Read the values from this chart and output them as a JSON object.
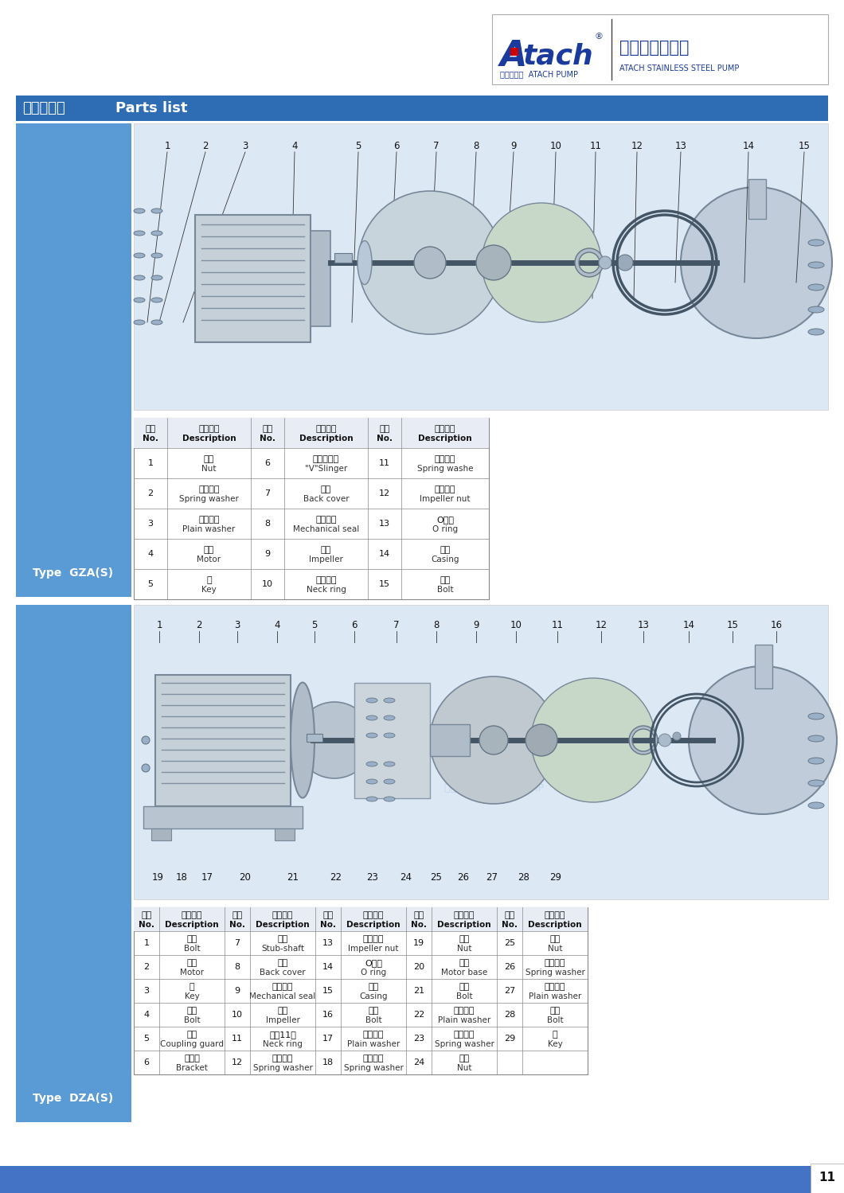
{
  "bg_color": "#ffffff",
  "blue_panel_color": "#5b9bd5",
  "footer_color": "#4472c4",
  "header_bar_color": "#2e6db4",
  "logo_atach_color": "#1a3a9e",
  "logo_red_color": "#cc0000",
  "logo_chinese": "艾特克不锈钓泵",
  "logo_eng": "ATACH STAINLESS STEEL PUMP",
  "logo_sub": "艾特克泵业  ATACH PUMP",
  "section_title_cn": "泵體部件表",
  "section_title_en": "Parts list",
  "type1": "Type  GZA(S)",
  "type2": "Type  DZA(S)",
  "page_num": "11",
  "table_hdr_bg": "#e8edf5",
  "table_border_color": "#888888",
  "gza_hdr_row": [
    "序號\nNo.",
    "部件名称\nDescription",
    "序號\nNo.",
    "部件名称\nDescription",
    "序號\nNo.",
    "部件名称\nDescription"
  ],
  "gza_data_rows": [
    [
      "1",
      "螺母\nNut",
      "6",
      "層型密封圈\n\"V\"Slinger",
      "11",
      "彌簧墊圈\nSpring washe"
    ],
    [
      "2",
      "彌簧墊圈\nSpring washer",
      "7",
      "後蓋\nBack cover",
      "12",
      "葉輪蓋母\nImpeller nut"
    ],
    [
      "3",
      "平面墊圈\nPlain washer",
      "8",
      "機械密封\nMechanical seal",
      "13",
      "O形圈\nO ring"
    ],
    [
      "4",
      "電機\nMotor",
      "9",
      "葉輪\nImpeller",
      "14",
      "泵體\nCasing"
    ],
    [
      "5",
      "鍵\nKey",
      "10",
      "浮動口環\nNeck ring",
      "15",
      "螺栓\nBolt"
    ]
  ],
  "dza_hdr_row": [
    "序號\nNo.",
    "部件名称\nDescription",
    "序號\nNo.",
    "部件名称\nDescription",
    "序號\nNo.",
    "部件名称\nDescription",
    "序號\nNo.",
    "部件名称\nDescription",
    "序號\nNo.",
    "部件名称\nDescription"
  ],
  "dza_data_rows": [
    [
      "1",
      "螺栓\nBolt",
      "7",
      "短軸\nStub-shaft",
      "13",
      "葉輪蓋母\nImpeller nut",
      "19",
      "螺母\nNut",
      "25",
      "螺母\nNut"
    ],
    [
      "2",
      "電機\nMotor",
      "8",
      "後蓋\nBack cover",
      "14",
      "O形圈\nO ring",
      "20",
      "墊脚\nMotor base",
      "26",
      "彌簧墊圈\nSpring washer"
    ],
    [
      "3",
      "鍵\nKey",
      "9",
      "機械密封\nMechanical seal",
      "15",
      "泵體\nCasing",
      "21",
      "螺栓\nBolt",
      "27",
      "平面墊圈\nPlain washer"
    ],
    [
      "4",
      "螺栓\nBolt",
      "10",
      "葉輪\nImpeller",
      "16",
      "螺栓\nBolt",
      "22",
      "平面墊圈\nPlain washer",
      "28",
      "螺栓\nBolt"
    ],
    [
      "5",
      "護板\nCoupling guard",
      "11",
      "浮動11環\nNeck ring",
      "17",
      "平面墊圈\nPlain washer",
      "23",
      "彌簧墊圈\nSpring washer",
      "29",
      "鍵\nKey"
    ],
    [
      "6",
      "聯接盤\nBracket",
      "12",
      "彌簧墊圈\nSpring washer",
      "18",
      "彌簧墊圈\nSpring washer",
      "24",
      "螺母\nNut",
      "",
      ""
    ]
  ],
  "watermark_text": "Atach",
  "watermark_sub": "艾特克泵业  ATACH PUMP"
}
